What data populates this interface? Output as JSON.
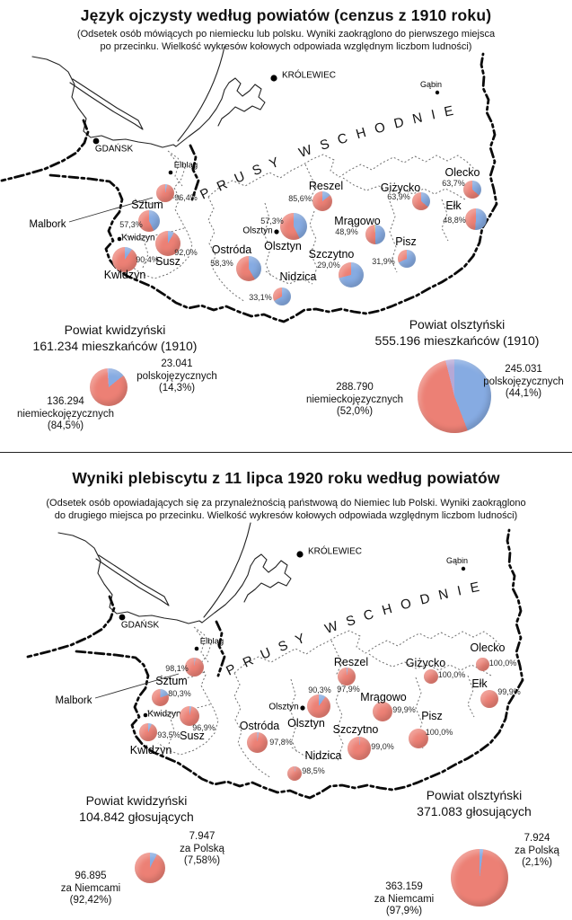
{
  "colors": {
    "german": "#ec8075",
    "polish": "#86abe2",
    "other": "#b5a8d6",
    "other2": "#c9d07c"
  },
  "sections": [
    {
      "title": "Język ojczysty według powiatów (cenzus z 1910 roku)",
      "subtitle": "(Odsetek osób mówiących po niemiecku lub polsku. Wyniki zaokrąglono do pierwszego miejsca\npo przecinku. Wielkość wykresów kołowych odpowiada względnym liczbom ludności)",
      "map": {
        "region_label": "PRUSY WSCHODNIE",
        "cities": [
          "GDAŃSK",
          "KRÓLEWIEC",
          "Gąbin",
          "Elbląg",
          "Olsztyn",
          "Kwidzyn",
          "Malbork"
        ],
        "districts": [
          {
            "name": "Malbork",
            "value": 96.4,
            "value_label": "96,4%"
          },
          {
            "name": "Sztum",
            "value": 57.3,
            "value_label": "57,3%"
          },
          {
            "name": "Kwidzyn",
            "value": 90.4,
            "value_label": "90,4%"
          },
          {
            "name": "Susz",
            "value": 92.0,
            "value_label": "92,0%"
          },
          {
            "name": "Ostróda",
            "value": 58.3,
            "value_label": "58,3%"
          },
          {
            "name": "Nidzica",
            "value": 33.1,
            "value_label": "33,1%"
          },
          {
            "name": "Olsztyn",
            "value": 57.3,
            "value_label": "57,3%"
          },
          {
            "name": "Reszel",
            "value": 85.6,
            "value_label": "85,6%"
          },
          {
            "name": "Mrągowo",
            "value": 48.9,
            "value_label": "48,9%",
            "other": 1.5
          },
          {
            "name": "Szczytno",
            "value": 29.0,
            "value_label": "29,0%"
          },
          {
            "name": "Pisz",
            "value": 31.9,
            "value_label": "31,9%"
          },
          {
            "name": "Giżycko",
            "value": 63.9,
            "value_label": "63,9%"
          },
          {
            "name": "Ełk",
            "value": 48.8,
            "value_label": "48,8%"
          },
          {
            "name": "Olecko",
            "value": 63.7,
            "value_label": "63,7%"
          }
        ]
      },
      "summaries": [
        {
          "title": "Powiat kwidzyński\n161.234 mieszkańców (1910)",
          "slices": [
            {
              "color": "polish",
              "pct": 14.3,
              "label": "23.041\npolskojęzycznych\n(14,3%)"
            },
            {
              "color": "german",
              "pct": 84.5,
              "label": "136.294\nniemieckojęzycznych\n(84,5%)"
            },
            {
              "color": "other",
              "pct": 1.2,
              "label": ""
            }
          ]
        },
        {
          "title": "Powiat olsztyński\n555.196 mieszkańców (1910)",
          "slices": [
            {
              "color": "polish",
              "pct": 44.1,
              "label": "245.031\npolskojęzycznych\n(44,1%)"
            },
            {
              "color": "german",
              "pct": 52.0,
              "label": "288.790\nniemieckojęzycznych\n(52,0%)"
            },
            {
              "color": "other",
              "pct": 3.9,
              "label": ""
            }
          ]
        }
      ]
    },
    {
      "title": "Wyniki plebiscytu z 11 lipca 1920 roku według powiatów",
      "subtitle": "(Odsetek osób opowiadających się za przynależnością państwową do Niemiec lub Polski. Wyniki zaokrąglono\ndo drugiego miejsca po przecinku. Wielkość wykresów kołowych odpowiada względnym liczbom ludności)",
      "map": {
        "region_label": "PRUSY WSCHODNIE",
        "cities": [
          "GDAŃSK",
          "KRÓLEWIEC",
          "Gąbin",
          "Elbląg",
          "Olsztyn",
          "Kwidzyn",
          "Malbork"
        ],
        "districts": [
          {
            "name": "Malbork",
            "value": 98.1,
            "value_label": "98,1%"
          },
          {
            "name": "Sztum",
            "value": 80.3,
            "value_label": "80,3%"
          },
          {
            "name": "Kwidzyn",
            "value": 93.5,
            "value_label": "93,5%"
          },
          {
            "name": "Susz",
            "value": 96.9,
            "value_label": "96,9%"
          },
          {
            "name": "Ostróda",
            "value": 97.8,
            "value_label": "97,8%"
          },
          {
            "name": "Nidzica",
            "value": 98.5,
            "value_label": "98,5%"
          },
          {
            "name": "Olsztyn",
            "value": 90.3,
            "value_label": "90,3%"
          },
          {
            "name": "Reszel",
            "value": 97.9,
            "value_label": "97,9%"
          },
          {
            "name": "Mrągowo",
            "value": 99.9,
            "value_label": "99,9%"
          },
          {
            "name": "Szczytno",
            "value": 99.0,
            "value_label": "99,0%"
          },
          {
            "name": "Pisz",
            "value": 100.0,
            "value_label": "100,0%"
          },
          {
            "name": "Giżycko",
            "value": 100.0,
            "value_label": "100,0%"
          },
          {
            "name": "Ełk",
            "value": 99.9,
            "value_label": "99,9%"
          },
          {
            "name": "Olecko",
            "value": 100.0,
            "value_label": "100,0%"
          }
        ]
      },
      "summaries": [
        {
          "title": "Powiat kwidzyński\n104.842 głosujących",
          "slices": [
            {
              "color": "polish",
              "pct": 7.58,
              "label": "7.947\nza Polską\n(7,58%)"
            },
            {
              "color": "german",
              "pct": 92.42,
              "label": "96.895\nza Niemcami\n(92,42%)"
            }
          ]
        },
        {
          "title": "Powiat olsztyński\n371.083 głosujących",
          "slices": [
            {
              "color": "polish",
              "pct": 2.1,
              "label": "7.924\nza Polską\n(2,1%)"
            },
            {
              "color": "german",
              "pct": 97.9,
              "label": "363.159\nza Niemcami\n(97,9%)"
            }
          ]
        }
      ]
    }
  ],
  "chart_data": [
    {
      "type": "pie",
      "subtype": "map-pies",
      "title": "Język ojczysty według powiatów (cenzus z 1910 roku)",
      "value_meaning": "odsetek ludności niemieckojęzycznej (czerwony); reszta polskojęzyczna (niebieski)",
      "categories": [
        "Malbork",
        "Sztum",
        "Kwidzyn",
        "Susz",
        "Ostróda",
        "Nidzica",
        "Olsztyn",
        "Reszel",
        "Mrągowo",
        "Szczytno",
        "Pisz",
        "Giżycko",
        "Ełk",
        "Olecko"
      ],
      "values": [
        96.4,
        57.3,
        90.4,
        92.0,
        58.3,
        33.1,
        57.3,
        85.6,
        48.9,
        29.0,
        31.9,
        63.9,
        48.8,
        63.7
      ]
    },
    {
      "type": "pie",
      "title": "Powiat kwidzyński — 161.234 mieszkańców (1910)",
      "slices": [
        {
          "label": "niemieckojęzycznych",
          "value": 136294,
          "pct": 84.5
        },
        {
          "label": "polskojęzycznych",
          "value": 23041,
          "pct": 14.3
        }
      ]
    },
    {
      "type": "pie",
      "title": "Powiat olsztyński — 555.196 mieszkańców (1910)",
      "slices": [
        {
          "label": "niemieckojęzycznych",
          "value": 288790,
          "pct": 52.0
        },
        {
          "label": "polskojęzycznych",
          "value": 245031,
          "pct": 44.1
        }
      ]
    },
    {
      "type": "pie",
      "subtype": "map-pies",
      "title": "Wyniki plebiscytu z 11 lipca 1920 roku według powiatów",
      "value_meaning": "odsetek głosów za Niemcami (czerwony); reszta za Polską (niebieski)",
      "categories": [
        "Malbork",
        "Sztum",
        "Kwidzyn",
        "Susz",
        "Ostróda",
        "Nidzica",
        "Olsztyn",
        "Reszel",
        "Mrągowo",
        "Szczytno",
        "Pisz",
        "Giżycko",
        "Ełk",
        "Olecko"
      ],
      "values": [
        98.1,
        80.3,
        93.5,
        96.9,
        97.8,
        98.5,
        90.3,
        97.9,
        99.9,
        99.0,
        100.0,
        100.0,
        99.9,
        100.0
      ]
    },
    {
      "type": "pie",
      "title": "Powiat kwidzyński — 104.842 głosujących",
      "slices": [
        {
          "label": "za Niemcami",
          "value": 96895,
          "pct": 92.42
        },
        {
          "label": "za Polską",
          "value": 7947,
          "pct": 7.58
        }
      ]
    },
    {
      "type": "pie",
      "title": "Powiat olsztyński — 371.083 głosujących",
      "slices": [
        {
          "label": "za Niemcami",
          "value": 363159,
          "pct": 97.9
        },
        {
          "label": "za Polską",
          "value": 7924,
          "pct": 2.1
        }
      ]
    }
  ]
}
